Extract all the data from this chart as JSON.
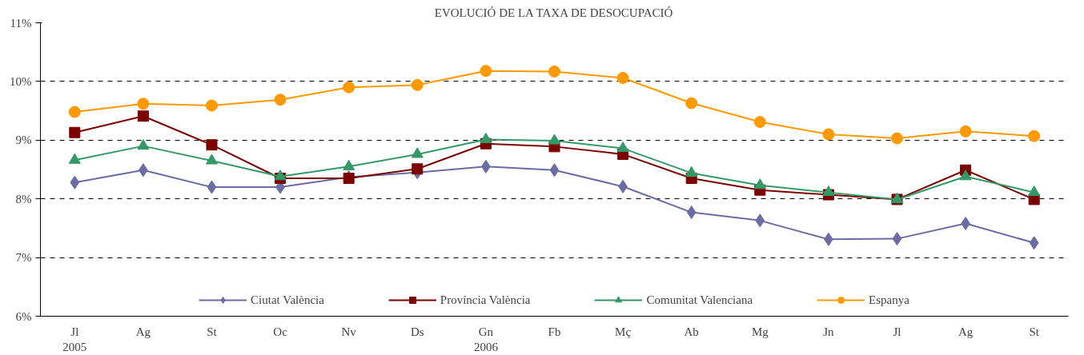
{
  "chart_data": {
    "type": "line",
    "title": "EVOLUCIÓ DE LA TAXA DE DESOCUPACIÓ",
    "categories": [
      "Jl\n2005",
      "Ag",
      "St",
      "Oc",
      "Nv",
      "Ds",
      "Gn\n2006",
      "Fb",
      "Mç",
      "Ab",
      "Mg",
      "Jn",
      "Jl",
      "Ag",
      "St"
    ],
    "ylim": [
      6,
      11
    ],
    "yticks": [
      {
        "value": 6,
        "label": "6%"
      },
      {
        "value": 7,
        "label": "7%"
      },
      {
        "value": 8,
        "label": "8%"
      },
      {
        "value": 9,
        "label": "9%"
      },
      {
        "value": 10,
        "label": "10%"
      },
      {
        "value": 11,
        "label": "11%"
      }
    ],
    "grid": "y",
    "legend": "bottom",
    "line_style": "solid",
    "series": [
      {
        "name": "Ciutat València",
        "color": "#6b6ba6",
        "marker": "diamond",
        "values": [
          8.28,
          8.49,
          8.2,
          8.2,
          8.37,
          8.45,
          8.55,
          8.49,
          8.21,
          7.77,
          7.63,
          7.31,
          7.32,
          7.58,
          7.25
        ]
      },
      {
        "name": "Província València",
        "color": "#7b0000",
        "marker": "square",
        "values": [
          9.13,
          9.41,
          8.92,
          8.35,
          8.35,
          8.51,
          8.94,
          8.89,
          8.76,
          8.35,
          8.15,
          8.07,
          7.99,
          8.49,
          7.99
        ]
      },
      {
        "name": "Comunitat Valenciana",
        "color": "#339966",
        "marker": "triangle",
        "values": [
          8.66,
          8.9,
          8.65,
          8.38,
          8.55,
          8.76,
          9.01,
          8.99,
          8.86,
          8.44,
          8.23,
          8.11,
          7.99,
          8.38,
          8.11
        ]
      },
      {
        "name": "Espanya",
        "color": "#ff9900",
        "marker": "circle",
        "values": [
          9.48,
          9.62,
          9.59,
          9.69,
          9.9,
          9.94,
          10.18,
          10.17,
          10.06,
          9.63,
          9.31,
          9.1,
          9.03,
          9.15,
          9.07
        ]
      }
    ]
  }
}
